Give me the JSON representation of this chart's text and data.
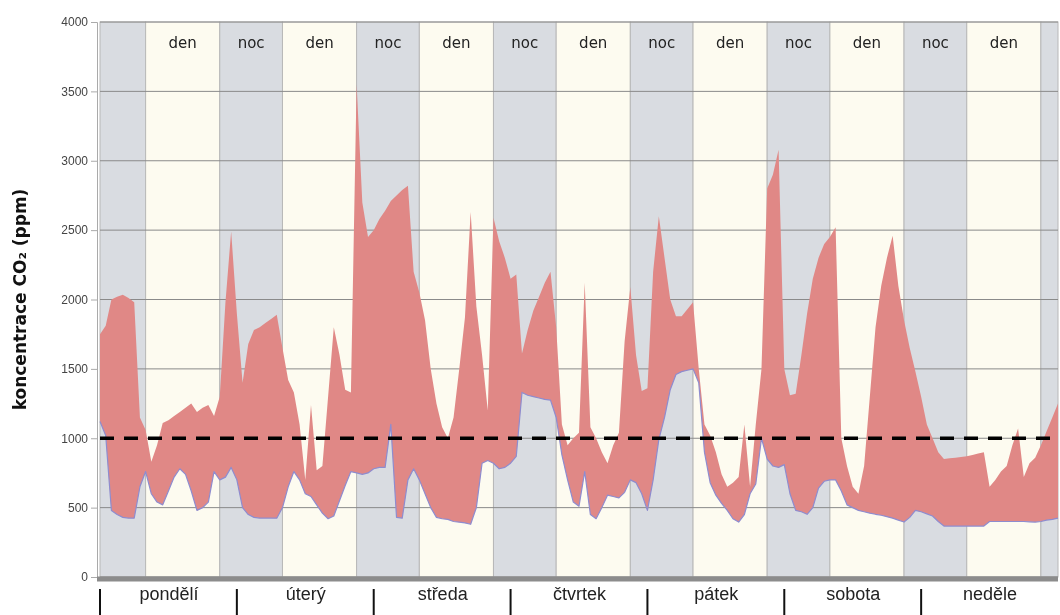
{
  "chart_data": {
    "type": "line",
    "ylabel": "koncentrace CO₂ (ppm)",
    "ylim": [
      0,
      4000
    ],
    "yticks": [
      0,
      500,
      1000,
      1500,
      2000,
      2500,
      3000,
      3500,
      4000
    ],
    "categories": [
      null,
      null,
      null,
      null,
      null,
      null,
      null,
      null,
      null,
      null,
      null,
      null,
      "pondělí",
      null,
      null,
      null,
      null,
      null,
      null,
      null,
      null,
      null,
      null,
      null,
      null,
      null,
      null,
      null,
      null,
      null,
      null,
      null,
      null,
      null,
      null,
      null,
      "úterý",
      null,
      null,
      null,
      null,
      null,
      null,
      null,
      null,
      null,
      null,
      null,
      null,
      null,
      null,
      null,
      null,
      null,
      null,
      null,
      null,
      null,
      null,
      null,
      "středa",
      null,
      null,
      null,
      null,
      null,
      null,
      null,
      null,
      null,
      null,
      null,
      null,
      null,
      null,
      null,
      null,
      null,
      null,
      null,
      null,
      null,
      null,
      null,
      "čtvrtek",
      null,
      null,
      null,
      null,
      null,
      null,
      null,
      null,
      null,
      null,
      null,
      null,
      null,
      null,
      null,
      null,
      null,
      null,
      null,
      null,
      null,
      null,
      null,
      "pátek",
      null,
      null,
      null,
      null,
      null,
      null,
      null,
      null,
      null,
      null,
      null,
      null,
      null,
      null,
      null,
      null,
      null,
      null,
      null,
      null,
      null,
      null,
      null,
      "sobota",
      null,
      null,
      null,
      null,
      null,
      null,
      null,
      null,
      null,
      null,
      null,
      null,
      null,
      null,
      null,
      null,
      null,
      null,
      null,
      null,
      null,
      null,
      null,
      "neděle",
      null,
      null,
      null,
      null,
      null,
      null,
      null,
      null,
      null,
      null,
      null,
      null
    ],
    "grid": "y",
    "annotations": [
      "den",
      "noc",
      "den",
      "noc",
      "den",
      "noc",
      "den",
      "noc",
      "den",
      "noc",
      "den",
      "noc",
      "den"
    ],
    "ref_lines": [
      {
        "axis": "y",
        "value": 1000,
        "color": "#000000",
        "line_style": "dashed"
      }
    ],
    "series": [
      {
        "color": "#8e8ccf",
        "upper": [
          1750,
          1810,
          2000,
          2020,
          2035,
          2010,
          1980,
          1150,
          1060,
          830,
          950,
          1110,
          1130,
          1160,
          1190,
          1220,
          1250,
          1190,
          1220,
          1240,
          1160,
          1300,
          1980,
          2490,
          1900,
          1400,
          1680,
          1780,
          1800,
          1830,
          1860,
          1890,
          1650,
          1420,
          1330,
          1100,
          700,
          1240,
          770,
          800,
          1300,
          1800,
          1600,
          1350,
          1330,
          3550,
          2700,
          2450,
          2500,
          2580,
          2640,
          2710,
          2750,
          2790,
          2820,
          2200,
          2050,
          1850,
          1500,
          1250,
          1080,
          1000,
          1150,
          1500,
          1870,
          2630,
          1950,
          1600,
          1200,
          2590,
          2420,
          2300,
          2150,
          2180,
          1610,
          1780,
          1920,
          2020,
          2120,
          2200,
          1800,
          1100,
          950,
          1000,
          1040,
          2120,
          1080,
          1000,
          900,
          820,
          950,
          1040,
          1700,
          2090,
          1600,
          1340,
          1360,
          2200,
          2600,
          2300,
          2000,
          1880,
          1880,
          1930,
          1980,
          1500,
          1100,
          1020,
          900,
          740,
          650,
          680,
          720,
          1100,
          650,
          1100,
          1500,
          2800,
          2900,
          3080,
          1500,
          1310,
          1320,
          1600,
          1900,
          2150,
          2300,
          2400,
          2450,
          2520,
          1000,
          800,
          650,
          600,
          800,
          1300,
          1800,
          2100,
          2300,
          2460,
          2100,
          1850,
          1650,
          1480,
          1300,
          1100,
          1000,
          900,
          850,
          855,
          860,
          865,
          870,
          880,
          890,
          900,
          650,
          700,
          760,
          800,
          950,
          1070,
          720,
          820,
          860,
          950,
          1050,
          1150,
          1250
        ],
        "values": [
          1120,
          1020,
          480,
          450,
          430,
          425,
          424,
          650,
          760,
          600,
          540,
          520,
          620,
          720,
          780,
          740,
          620,
          480,
          500,
          540,
          760,
          700,
          720,
          790,
          700,
          500,
          450,
          430,
          425,
          425,
          425,
          424,
          500,
          650,
          760,
          700,
          600,
          580,
          520,
          460,
          420,
          440,
          550,
          660,
          760,
          750,
          740,
          750,
          780,
          790,
          790,
          1100,
          430,
          424,
          700,
          780,
          700,
          600,
          500,
          430,
          420,
          415,
          400,
          395,
          390,
          380,
          500,
          820,
          840,
          820,
          780,
          790,
          820,
          870,
          1330,
          1310,
          1300,
          1290,
          1280,
          1275,
          1150,
          880,
          700,
          540,
          510,
          760,
          450,
          420,
          500,
          590,
          580,
          570,
          610,
          700,
          680,
          600,
          480,
          700,
          990,
          1150,
          1350,
          1460,
          1480,
          1490,
          1500,
          1400,
          900,
          680,
          590,
          530,
          480,
          420,
          396,
          450,
          600,
          670,
          1000,
          850,
          800,
          790,
          810,
          600,
          480,
          470,
          452,
          500,
          640,
          690,
          700,
          700,
          620,
          520,
          500,
          480,
          470,
          460,
          452,
          445,
          435,
          424,
          410,
          396,
          430,
          480,
          470,
          455,
          440,
          400,
          367,
          367,
          367,
          367,
          367,
          367,
          367,
          367,
          400,
          400,
          400,
          400,
          400,
          400,
          400,
          398,
          396,
          400,
          410,
          415,
          424
        ],
        "lower": [
          1120,
          1020,
          480,
          450,
          430,
          425,
          424,
          650,
          760,
          600,
          540,
          520,
          620,
          720,
          780,
          740,
          620,
          480,
          500,
          540,
          760,
          700,
          720,
          790,
          700,
          500,
          450,
          430,
          425,
          425,
          425,
          424,
          500,
          650,
          760,
          700,
          600,
          580,
          520,
          460,
          420,
          440,
          550,
          660,
          760,
          750,
          740,
          750,
          780,
          790,
          790,
          1100,
          430,
          424,
          700,
          780,
          700,
          600,
          500,
          430,
          420,
          415,
          400,
          395,
          390,
          380,
          500,
          820,
          840,
          820,
          780,
          790,
          820,
          870,
          1330,
          1310,
          1300,
          1290,
          1280,
          1275,
          1150,
          880,
          700,
          540,
          510,
          760,
          450,
          420,
          500,
          590,
          580,
          570,
          610,
          700,
          680,
          600,
          480,
          700,
          990,
          1150,
          1350,
          1460,
          1480,
          1490,
          1500,
          1400,
          900,
          680,
          590,
          530,
          480,
          420,
          396,
          450,
          600,
          670,
          1000,
          850,
          800,
          790,
          810,
          600,
          480,
          470,
          452,
          500,
          640,
          690,
          700,
          700,
          620,
          520,
          500,
          480,
          470,
          460,
          452,
          445,
          435,
          424,
          410,
          396,
          430,
          480,
          470,
          455,
          440,
          400,
          367,
          367,
          367,
          367,
          367,
          367,
          367,
          367,
          400,
          400,
          400,
          400,
          400,
          400,
          400,
          398,
          396,
          400,
          410,
          415,
          424
        ]
      }
    ]
  }
}
